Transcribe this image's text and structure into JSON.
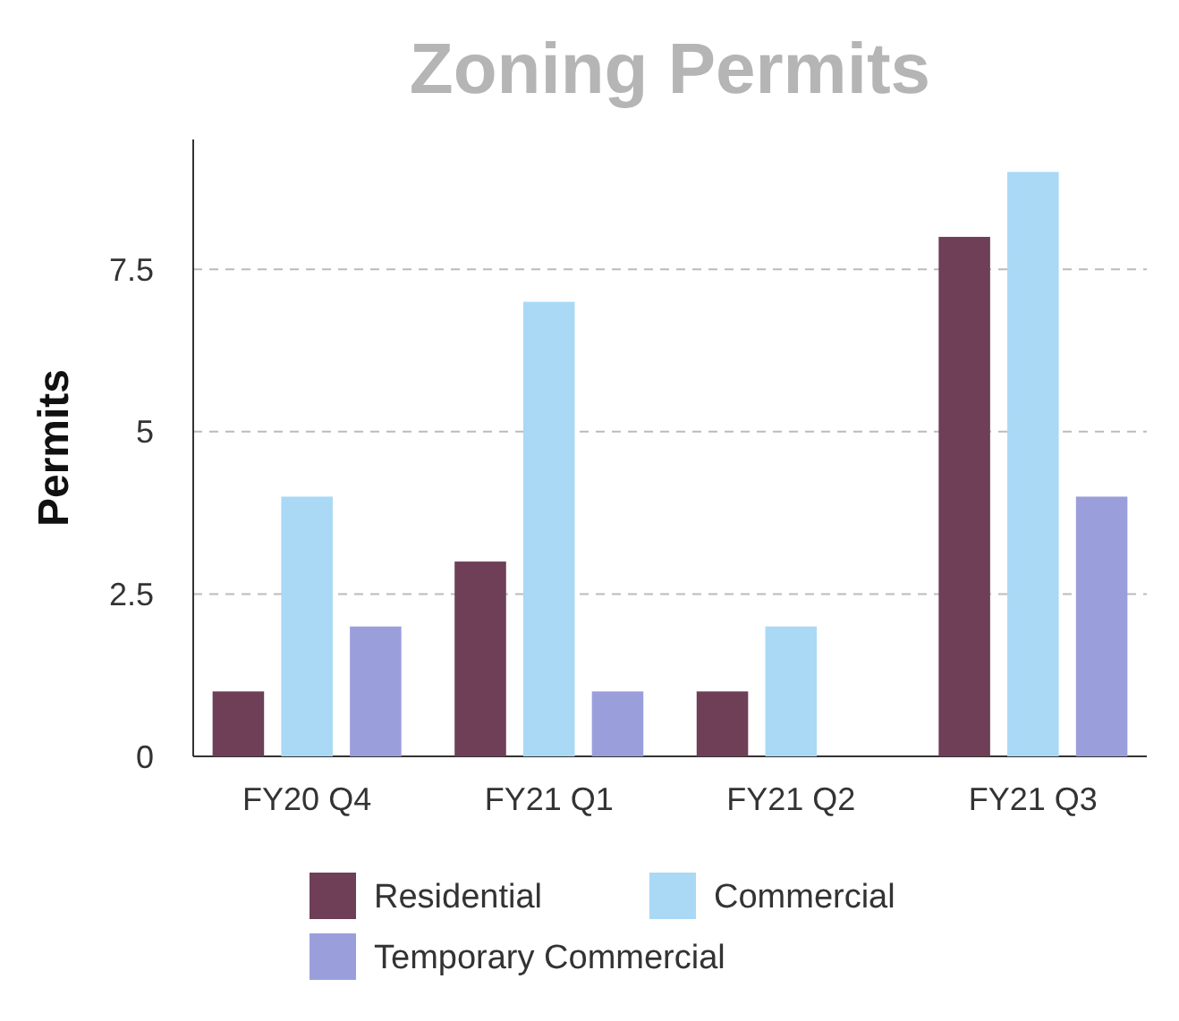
{
  "chart_data": {
    "type": "bar",
    "title": "Zoning Permits",
    "ylabel": "Permits",
    "categories": [
      "FY20 Q4",
      "FY21 Q1",
      "FY21 Q2",
      "FY21 Q3"
    ],
    "series": [
      {
        "name": "Residential",
        "color": "#6e3f57",
        "values": [
          1,
          3,
          1,
          8
        ]
      },
      {
        "name": "Commercial",
        "color": "#a9d9f5",
        "values": [
          4,
          7,
          2,
          9
        ]
      },
      {
        "name": "Temporary Commercial",
        "color": "#9a9fdc",
        "values": [
          2,
          1,
          null,
          4
        ]
      }
    ],
    "ylim": [
      0,
      9.5
    ],
    "yticks": [
      0,
      2.5,
      5,
      7.5
    ],
    "grid": "y",
    "legend": "bottom"
  }
}
